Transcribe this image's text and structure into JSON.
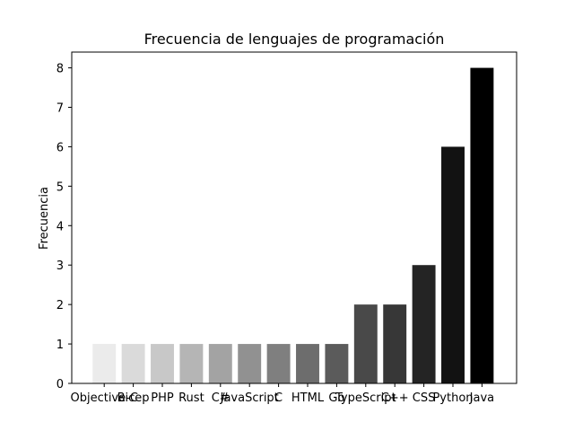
{
  "chart_data": {
    "type": "bar",
    "title": "Frecuencia de lenguajes de programación",
    "xlabel": "",
    "ylabel": "Frecuencia",
    "categories": [
      "Objective-C",
      "Bicep",
      "PHP",
      "Rust",
      "C#",
      "JavaScript",
      "C",
      "HTML",
      "Go",
      "TypeScript",
      "C++",
      "CSS",
      "Python",
      "Java"
    ],
    "values": [
      1,
      1,
      1,
      1,
      1,
      1,
      1,
      1,
      1,
      2,
      2,
      3,
      6,
      8
    ],
    "colors": [
      "#ebebeb",
      "#dadada",
      "#c8c8c8",
      "#b5b5b5",
      "#a3a3a3",
      "#919191",
      "#7f7f7f",
      "#6d6d6d",
      "#5b5b5b",
      "#494949",
      "#373737",
      "#242424",
      "#121212",
      "#000000"
    ],
    "ylim": [
      0,
      8.4
    ],
    "yticks": [
      0,
      1,
      2,
      3,
      4,
      5,
      6,
      7,
      8
    ],
    "grid": false,
    "legend": "none"
  }
}
